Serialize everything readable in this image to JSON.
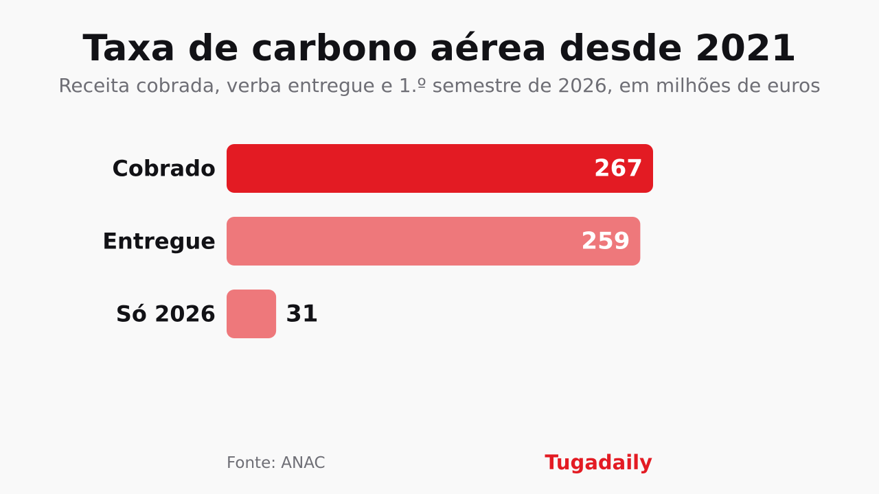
{
  "header": {
    "title": "Taxa de carbono aérea desde 2021",
    "subtitle": "Receita cobrada, verba entregue e 1.º semestre de 2026, em milhões de euros"
  },
  "footer": {
    "source": "Fonte: ANAC",
    "brand": "Tugadaily"
  },
  "colors": {
    "primary": "#e31b23",
    "secondary": "#ee787b",
    "text": "#121216",
    "muted": "#6e6e75",
    "background": "#f9f9f9"
  },
  "chart_data": {
    "type": "bar",
    "orientation": "horizontal",
    "categories": [
      "Cobrado",
      "Entregue",
      "Só 2026"
    ],
    "values": [
      267,
      259,
      31
    ],
    "xlim": [
      0,
      267
    ],
    "bar_colors": [
      "#e31b23",
      "#ee787b",
      "#ee787b"
    ],
    "grid": false,
    "legend": "none"
  }
}
